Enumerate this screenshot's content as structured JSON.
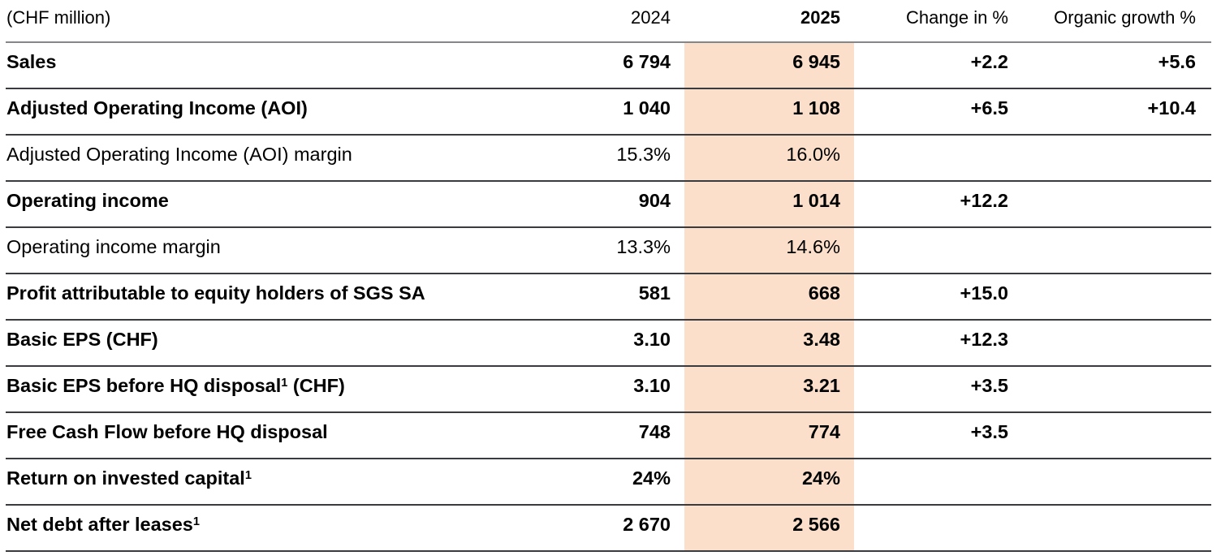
{
  "table": {
    "header": {
      "unit": "(CHF million)",
      "col2024": "2024",
      "col2025": "2025",
      "change": "Change in %",
      "organic": "Organic growth %"
    },
    "rows": [
      {
        "label": "Sales",
        "sup": "",
        "label_suffix": "",
        "bold": true,
        "v2024": "6 794",
        "v2025": "6 945",
        "change": "+2.2",
        "organic": "+5.6"
      },
      {
        "label": "Adjusted Operating Income (AOI)",
        "sup": "",
        "label_suffix": "",
        "bold": true,
        "v2024": "1 040",
        "v2025": "1 108",
        "change": "+6.5",
        "organic": "+10.4"
      },
      {
        "label": "Adjusted Operating Income (AOI) margin",
        "sup": "",
        "label_suffix": "",
        "bold": false,
        "v2024": "15.3%",
        "v2025": "16.0%",
        "change": "",
        "organic": ""
      },
      {
        "label": "Operating income",
        "sup": "",
        "label_suffix": "",
        "bold": true,
        "v2024": "904",
        "v2025": "1 014",
        "change": "+12.2",
        "organic": ""
      },
      {
        "label": "Operating income margin",
        "sup": "",
        "label_suffix": "",
        "bold": false,
        "v2024": "13.3%",
        "v2025": "14.6%",
        "change": "",
        "organic": ""
      },
      {
        "label": "Profit attributable to equity holders of SGS SA",
        "sup": "",
        "label_suffix": "",
        "bold": true,
        "v2024": "581",
        "v2025": "668",
        "change": "+15.0",
        "organic": ""
      },
      {
        "label": "Basic EPS (CHF)",
        "sup": "",
        "label_suffix": "",
        "bold": true,
        "v2024": "3.10",
        "v2025": "3.48",
        "change": "+12.3",
        "organic": ""
      },
      {
        "label": "Basic EPS before HQ disposal",
        "sup": "1",
        "label_suffix": " (CHF)",
        "bold": true,
        "v2024": "3.10",
        "v2025": "3.21",
        "change": "+3.5",
        "organic": ""
      },
      {
        "label": "Free Cash Flow before HQ disposal",
        "sup": "",
        "label_suffix": "",
        "bold": true,
        "v2024": "748",
        "v2025": "774",
        "change": "+3.5",
        "organic": ""
      },
      {
        "label": "Return on invested capital",
        "sup": "1",
        "label_suffix": "",
        "bold": true,
        "v2024": "24%",
        "v2025": "24%",
        "change": "",
        "organic": ""
      },
      {
        "label": "Net debt after leases",
        "sup": "1",
        "label_suffix": "",
        "bold": true,
        "v2024": "2 670",
        "v2025": "2 566",
        "change": "",
        "organic": ""
      }
    ]
  },
  "colors": {
    "highlight_2025": "#fcdfcb",
    "rule_header": "#85868a",
    "rule_row": "#3a3b3f",
    "text": "#000000",
    "background": "#ffffff"
  }
}
